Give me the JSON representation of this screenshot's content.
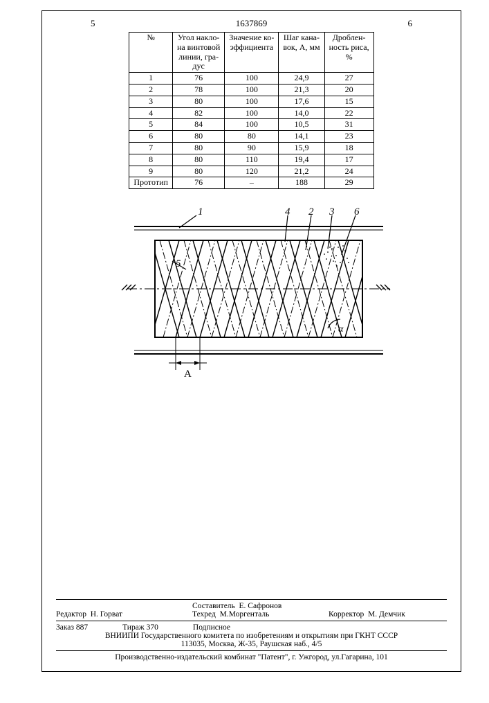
{
  "header": {
    "page_left": "5",
    "patent_number": "1637869",
    "page_right": "6"
  },
  "table": {
    "columns": [
      "№",
      "Угол накло-\nна винтовой\nлинии, гра-\nдус",
      "Значение ко-\nэффициента",
      "Шаг кана-\nвок, А, мм",
      "Дроблен-\nность риса,\n%"
    ],
    "rows": [
      [
        "1",
        "76",
        "100",
        "24,9",
        "27"
      ],
      [
        "2",
        "78",
        "100",
        "21,3",
        "20"
      ],
      [
        "3",
        "80",
        "100",
        "17,6",
        "15"
      ],
      [
        "4",
        "82",
        "100",
        "14,0",
        "22"
      ],
      [
        "5",
        "84",
        "100",
        "10,5",
        "31"
      ],
      [
        "6",
        "80",
        "80",
        "14,1",
        "23"
      ],
      [
        "7",
        "80",
        "90",
        "15,9",
        "18"
      ],
      [
        "8",
        "80",
        "110",
        "19,4",
        "17"
      ],
      [
        "9",
        "80",
        "120",
        "21,2",
        "24"
      ],
      [
        "Прототип",
        "76",
        "–",
        "188",
        "29"
      ]
    ]
  },
  "figure": {
    "labels": {
      "l1": "1",
      "l2": "2",
      "l3": "3",
      "l4": "4",
      "l5": "5",
      "l6": "6",
      "A": "A",
      "alpha": "α"
    },
    "nodes": [],
    "edges": []
  },
  "footer": {
    "editor_label": "Редактор",
    "editor_name": "Н. Горват",
    "compiler_label": "Составитель",
    "compiler_name": "Е. Сафронов",
    "techred_label": "Техред",
    "techred_name": "М.Моргенталь",
    "corrector_label": "Корректор",
    "corrector_name": "М. Демчик",
    "order_label": "Заказ",
    "order_no": "887",
    "tirazh_label": "Тираж",
    "tirazh_no": "370",
    "subscription": "Подписное",
    "org_line": "ВНИИПИ Государственного комитета по изобретениям и открытиям при ГКНТ СССР",
    "address": "113035, Москва, Ж-35, Раушская наб., 4/5",
    "printer": "Производственно-издательский комбинат \"Патент\", г. Ужгород, ул.Гагарина, 101"
  }
}
